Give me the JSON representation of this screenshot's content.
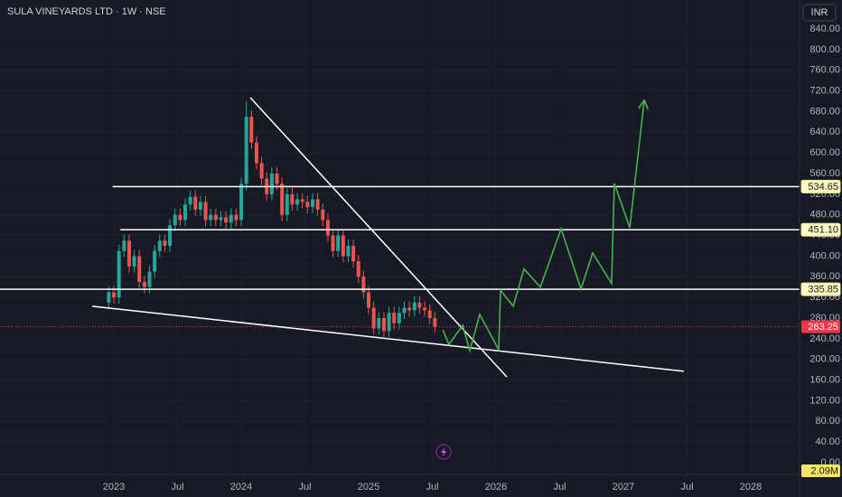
{
  "chart_data": {
    "type": "candlestick",
    "title": "SULA VINEYARDS LTD · 1W · NSE",
    "currency": "INR",
    "up_color": "#26a69a",
    "down_color": "#ef5350",
    "x": [
      2022.96,
      2023.0,
      2023.04,
      2023.08,
      2023.12,
      2023.16,
      2023.2,
      2023.24,
      2023.28,
      2023.32,
      2023.36,
      2023.4,
      2023.44,
      2023.48,
      2023.52,
      2023.56,
      2023.6,
      2023.64,
      2023.68,
      2023.72,
      2023.76,
      2023.8,
      2023.84,
      2023.88,
      2023.92,
      2023.96,
      2024.0,
      2024.04,
      2024.08,
      2024.12,
      2024.16,
      2024.2,
      2024.24,
      2024.28,
      2024.32,
      2024.36,
      2024.4,
      2024.44,
      2024.48,
      2024.52,
      2024.56,
      2024.6,
      2024.64,
      2024.68,
      2024.72,
      2024.76,
      2024.8,
      2024.84,
      2024.88,
      2024.92,
      2024.96,
      2025.0,
      2025.04,
      2025.08,
      2025.12,
      2025.16,
      2025.2,
      2025.24,
      2025.28,
      2025.32,
      2025.36,
      2025.4,
      2025.44,
      2025.48,
      2025.52
    ],
    "open": [
      310,
      330,
      320,
      410,
      430,
      380,
      400,
      350,
      340,
      370,
      410,
      430,
      420,
      460,
      480,
      470,
      500,
      515,
      490,
      505,
      470,
      480,
      470,
      475,
      465,
      480,
      470,
      540,
      670,
      620,
      580,
      550,
      520,
      560,
      540,
      480,
      520,
      500,
      510,
      505,
      495,
      510,
      490,
      470,
      440,
      410,
      440,
      400,
      420,
      390,
      360,
      330,
      300,
      260,
      280,
      255,
      290,
      270,
      290,
      300,
      295,
      310,
      300,
      295,
      280
    ],
    "high": [
      342,
      342,
      422,
      442,
      442,
      412,
      412,
      362,
      382,
      422,
      442,
      442,
      472,
      492,
      492,
      512,
      527,
      527,
      517,
      517,
      492,
      492,
      487,
      487,
      492,
      492,
      552,
      700,
      682,
      632,
      592,
      562,
      572,
      572,
      552,
      532,
      532,
      522,
      522,
      517,
      522,
      522,
      502,
      482,
      452,
      452,
      452,
      432,
      432,
      402,
      372,
      342,
      312,
      292,
      292,
      302,
      302,
      302,
      312,
      312,
      322,
      322,
      312,
      307,
      292
    ],
    "low": [
      298,
      308,
      308,
      398,
      368,
      368,
      338,
      328,
      328,
      358,
      398,
      408,
      408,
      448,
      458,
      458,
      488,
      478,
      478,
      458,
      458,
      458,
      458,
      453,
      453,
      458,
      458,
      528,
      608,
      568,
      538,
      508,
      508,
      528,
      468,
      468,
      488,
      488,
      493,
      483,
      483,
      478,
      458,
      428,
      398,
      398,
      388,
      388,
      378,
      348,
      318,
      288,
      248,
      248,
      243,
      243,
      258,
      258,
      278,
      283,
      283,
      288,
      283,
      268,
      251.25
    ],
    "close": [
      330,
      320,
      410,
      430,
      380,
      400,
      350,
      340,
      370,
      410,
      430,
      420,
      460,
      480,
      470,
      500,
      515,
      490,
      505,
      470,
      480,
      470,
      475,
      465,
      480,
      470,
      540,
      670,
      620,
      580,
      550,
      520,
      560,
      540,
      480,
      520,
      500,
      510,
      505,
      495,
      510,
      490,
      470,
      440,
      410,
      440,
      400,
      420,
      390,
      360,
      330,
      300,
      260,
      280,
      255,
      290,
      270,
      290,
      300,
      295,
      310,
      300,
      295,
      280,
      263.25
    ],
    "xlim": [
      2022.106,
      2028.383
    ],
    "xticks": [
      2023,
      {
        "value": 2023.5,
        "label": "Jul"
      },
      2024,
      {
        "value": 2024.5,
        "label": "Jul"
      },
      2025,
      {
        "value": 2025.5,
        "label": "Jul"
      },
      2026,
      {
        "value": 2026.5,
        "label": "Jul"
      },
      2027,
      {
        "value": 2027.5,
        "label": "Jul"
      },
      2028
    ],
    "ylim": [
      -22.75,
      896
    ],
    "yticks": [
      {
        "value": 0,
        "label": "0.00"
      },
      {
        "value": 40,
        "label": "40.00"
      },
      {
        "value": 80,
        "label": "80.00"
      },
      {
        "value": 120,
        "label": "120.00"
      },
      {
        "value": 160,
        "label": "160.00"
      },
      {
        "value": 200,
        "label": "200.00"
      },
      {
        "value": 240,
        "label": "240.00"
      },
      {
        "value": 280,
        "label": "280.00"
      },
      {
        "value": 320,
        "label": "320.00"
      },
      {
        "value": 360,
        "label": "360.00"
      },
      {
        "value": 400,
        "label": "400.00"
      },
      {
        "value": 440,
        "label": "440.00"
      },
      {
        "value": 480,
        "label": "480.00"
      },
      {
        "value": 520,
        "label": "520.00"
      },
      {
        "value": 560,
        "label": "560.00"
      },
      {
        "value": 600,
        "label": "600.00"
      },
      {
        "value": 640,
        "label": "640.00"
      },
      {
        "value": 680,
        "label": "680.00"
      },
      {
        "value": 720,
        "label": "720.00"
      },
      {
        "value": 760,
        "label": "760.00"
      },
      {
        "value": 800,
        "label": "800.00"
      },
      {
        "value": 840,
        "label": "840.00"
      }
    ],
    "grid": true,
    "levels": {
      "values": [
        534.65,
        451.1,
        335.85
      ],
      "value_labels": [
        "534.65",
        "451.10",
        "335.85"
      ],
      "starts": [
        2022.99,
        2023.05,
        2022.106
      ],
      "color": "#ffffff"
    },
    "last_price": 263.25,
    "last_price_color": "#f23645",
    "volume": 2090000,
    "volume_label": "2.09M",
    "trendlines": [
      {
        "x": [
          2024.071,
          2026.085
        ],
        "y": [
          707,
          166
        ]
      },
      {
        "x": [
          2022.83,
          2027.475
        ],
        "y": [
          303,
          177
        ]
      }
    ],
    "projection": {
      "color": "#4caf50",
      "x": [
        2025.582,
        2025.631,
        2025.738,
        2025.794,
        2025.872,
        2026.021,
        2026.035,
        2026.135,
        2026.22,
        2026.348,
        2026.511,
        2026.667,
        2026.759,
        2026.908,
        2026.929,
        2027.05,
        2027.163
      ],
      "y": [
        257,
        229,
        266,
        217,
        287,
        219,
        334,
        303,
        375,
        340,
        453,
        336,
        406,
        347,
        541,
        455,
        700
      ]
    }
  }
}
